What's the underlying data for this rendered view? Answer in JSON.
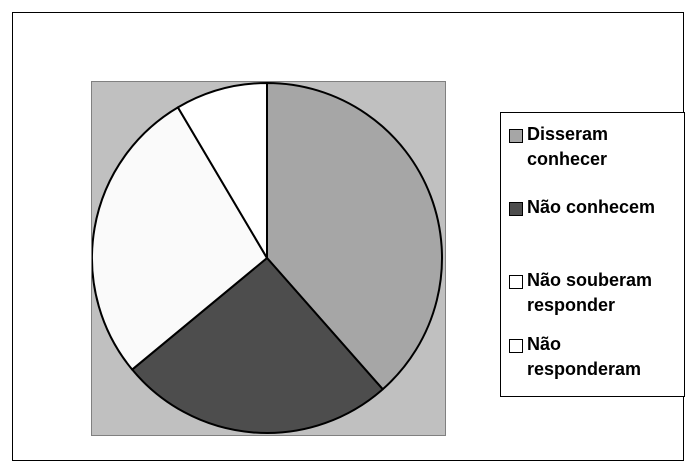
{
  "chart_data": {
    "type": "pie",
    "series": [
      {
        "name": "Disseram conhecer",
        "value": 38.5,
        "color": "#a6a6a6"
      },
      {
        "name": "Não conhecem",
        "value": 25.5,
        "color": "#4d4d4d"
      },
      {
        "name": "Não souberam responder",
        "value": 27.5,
        "color": "#fafafa"
      },
      {
        "name": "Não responderam",
        "value": 8.5,
        "color": "#ffffff"
      }
    ],
    "start_angle_deg": 0,
    "direction": "clockwise",
    "plot_background": "#c0c0c0",
    "legend_position": "right"
  },
  "legend": {
    "items": [
      {
        "label": "Disseram conhecer",
        "color": "#a6a6a6"
      },
      {
        "label": "Não conhecem",
        "color": "#4d4d4d"
      },
      {
        "label": "Não souberam responder",
        "color": "#ffffff"
      },
      {
        "label": "Não responderam",
        "color": "#ffffff"
      }
    ]
  }
}
